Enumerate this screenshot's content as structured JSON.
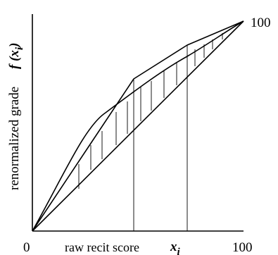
{
  "figure": {
    "origin_label": "0",
    "x_max_label": "100",
    "y_max_label": "100",
    "x_label": "raw recit score",
    "x_var": "x",
    "x_sub": "i",
    "y_label": "renormalized grade",
    "y_func": "f (x",
    "y_sub": "i",
    "y_close": ")"
  }
}
